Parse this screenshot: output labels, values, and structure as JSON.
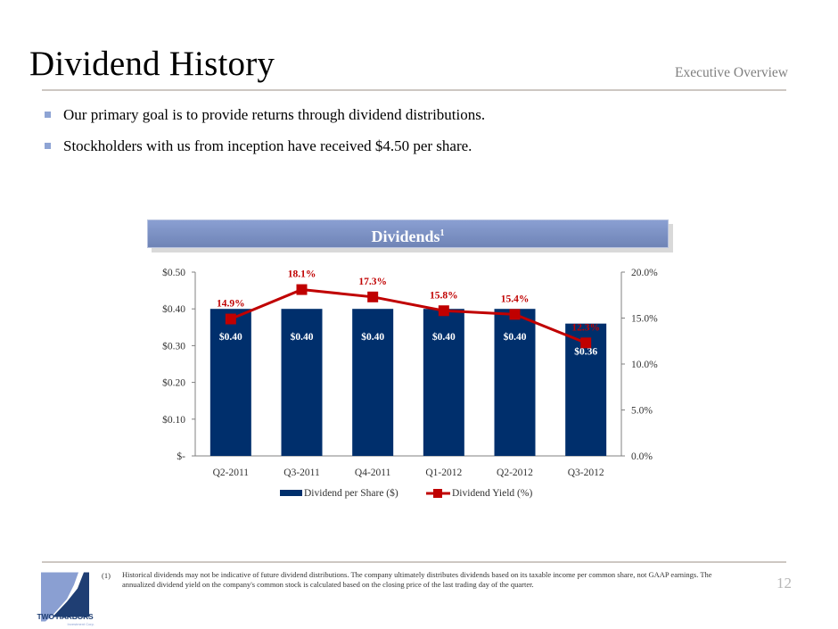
{
  "header": {
    "title": "Dividend History",
    "section": "Executive Overview"
  },
  "bullets": [
    "Our primary goal is to provide returns through dividend distributions.",
    "Stockholders with us from inception have received $4.50 per share."
  ],
  "banner": {
    "title": "Dividends",
    "superscript": "1"
  },
  "chart_data": {
    "type": "bar",
    "title": "Dividends",
    "categories": [
      "Q2-2011",
      "Q3-2011",
      "Q4-2011",
      "Q1-2012",
      "Q2-2012",
      "Q3-2012"
    ],
    "series": [
      {
        "name": "Dividend per Share ($)",
        "type": "bar",
        "axis": "left",
        "color": "#002f6c",
        "values": [
          0.4,
          0.4,
          0.4,
          0.4,
          0.4,
          0.36
        ],
        "labels": [
          "$0.40",
          "$0.40",
          "$0.40",
          "$0.40",
          "$0.40",
          "$0.36"
        ]
      },
      {
        "name": "Dividend Yield (%)",
        "type": "line",
        "axis": "right",
        "color": "#c00000",
        "values": [
          14.9,
          18.1,
          17.3,
          15.8,
          15.4,
          12.3
        ],
        "labels": [
          "14.9%",
          "18.1%",
          "17.3%",
          "15.8%",
          "15.4%",
          "12.3%"
        ]
      }
    ],
    "y_left": {
      "range": [
        0,
        0.5
      ],
      "ticks": [
        0,
        0.1,
        0.2,
        0.3,
        0.4,
        0.5
      ],
      "tick_labels": [
        "$-",
        "$0.10",
        "$0.20",
        "$0.30",
        "$0.40",
        "$0.50"
      ]
    },
    "y_right": {
      "range": [
        0,
        20
      ],
      "ticks": [
        0,
        5,
        10,
        15,
        20
      ],
      "tick_labels": [
        "0.0%",
        "5.0%",
        "10.0%",
        "15.0%",
        "20.0%"
      ]
    },
    "xlabel": "",
    "grid": false,
    "legend": "bottom-center"
  },
  "footnote": {
    "number": "(1)",
    "text": "Historical dividends may not be indicative of future dividend distributions.  The company ultimately distributes dividends based on its taxable income per common share, not GAAP earnings. The annualized dividend yield on the company's common stock is calculated based on the closing price of the last trading day of the quarter."
  },
  "logo": {
    "name": "TWO HARBORS",
    "sub": "Investment Corp."
  },
  "page_number": "12"
}
